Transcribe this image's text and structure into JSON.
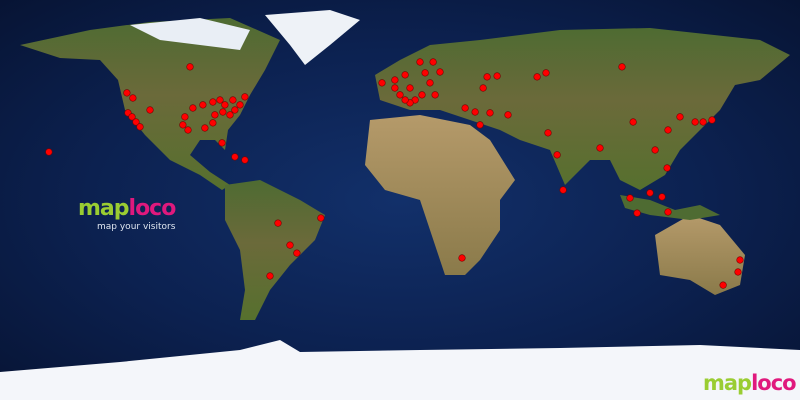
{
  "widget": {
    "logo_part1": "map",
    "logo_part2": "loco",
    "tagline": "map your visitors",
    "colors": {
      "ocean": "#0c2150",
      "land": "#4a6a2a",
      "ice": "#f2f5fa",
      "marker": "#ff0000",
      "logo_green": "#9acd32",
      "logo_pink": "#e0197d"
    }
  },
  "projection": "equirectangular",
  "visitors": [
    [
      -94.5,
      59.9
    ],
    [
      -122.9,
      48.2
    ],
    [
      -120.2,
      45.9
    ],
    [
      -122.4,
      39.2
    ],
    [
      -120.6,
      37.4
    ],
    [
      -118.8,
      35.1
    ],
    [
      -117,
      32.9
    ],
    [
      -112.5,
      40.5
    ],
    [
      -96.8,
      37.4
    ],
    [
      -97.7,
      33.8
    ],
    [
      -95.4,
      31.5
    ],
    [
      -93.2,
      41.4
    ],
    [
      -88.7,
      42.8
    ],
    [
      -84.2,
      44.1
    ],
    [
      -81,
      45
    ],
    [
      -78.8,
      42.8
    ],
    [
      -75.2,
      45
    ],
    [
      -72,
      42.8
    ],
    [
      -69.8,
      46.4
    ],
    [
      -83.3,
      38.3
    ],
    [
      -79.7,
      39.6
    ],
    [
      -76.5,
      38.3
    ],
    [
      -87.8,
      32.4
    ],
    [
      -84.2,
      34.7
    ],
    [
      -74.3,
      40.5
    ],
    [
      -80.1,
      25.7
    ],
    [
      -69.8,
      18
    ],
    [
      -74.3,
      19.4
    ],
    [
      -158,
      21.6
    ],
    [
      -54.9,
      -10.4
    ],
    [
      -49.5,
      -20.3
    ],
    [
      -46.4,
      -23.9
    ],
    [
      -35.6,
      -8.1
    ],
    [
      -58.5,
      -34.2
    ],
    [
      -8.1,
      52.7
    ],
    [
      -2.3,
      54
    ],
    [
      2.3,
      56.3
    ],
    [
      9,
      62.1
    ],
    [
      14.9,
      62.1
    ],
    [
      11.3,
      57.2
    ],
    [
      13.5,
      52.7
    ],
    [
      4.5,
      50.4
    ],
    [
      0,
      47.3
    ],
    [
      -2.3,
      50.4
    ],
    [
      6.8,
      45
    ],
    [
      4.5,
      43.7
    ],
    [
      9.9,
      47.3
    ],
    [
      15.8,
      47.3
    ],
    [
      18,
      57.6
    ],
    [
      2.3,
      45
    ],
    [
      37.4,
      50.4
    ],
    [
      39.2,
      55.4
    ],
    [
      43.7,
      55.8
    ],
    [
      61.7,
      55.4
    ],
    [
      65.7,
      57.2
    ],
    [
      99.9,
      59.9
    ],
    [
      29.3,
      41.4
    ],
    [
      33.8,
      39.6
    ],
    [
      36,
      33.8
    ],
    [
      40.5,
      39.2
    ],
    [
      48.6,
      38.3
    ],
    [
      66.6,
      30.2
    ],
    [
      70.7,
      20.3
    ],
    [
      73.4,
      4.5
    ],
    [
      90,
      23.4
    ],
    [
      104.9,
      35.1
    ],
    [
      120.6,
      31.5
    ],
    [
      126,
      37.4
    ],
    [
      132.8,
      35.1
    ],
    [
      136.4,
      35.1
    ],
    [
      140.4,
      36
    ],
    [
      114.8,
      22.5
    ],
    [
      120.2,
      14.4
    ],
    [
      103.5,
      0.9
    ],
    [
      106.7,
      -5.9
    ],
    [
      112.5,
      3.2
    ],
    [
      117.9,
      1.4
    ],
    [
      120.6,
      -5.4
    ],
    [
      27.9,
      -26.1
    ],
    [
      153,
      -27
    ],
    [
      152.1,
      -32.4
    ],
    [
      145.4,
      -38.3
    ]
  ]
}
